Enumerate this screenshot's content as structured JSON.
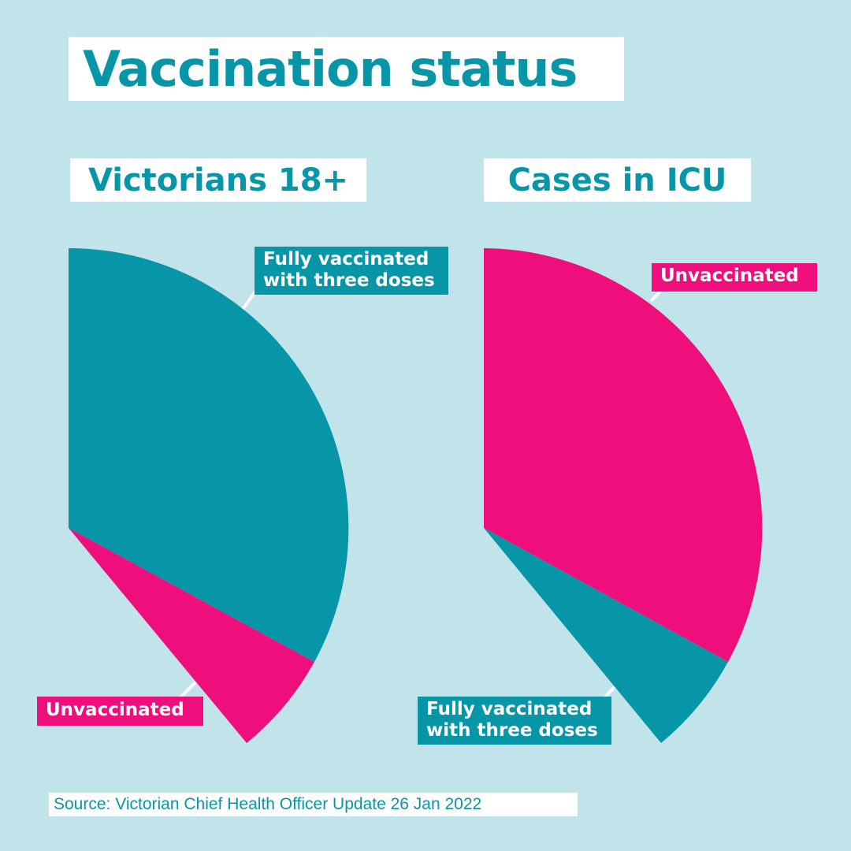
{
  "title": "Vaccination status",
  "source": "Source: Victorian Chief Health Officer Update 26 Jan 2022",
  "colors": {
    "fully_vaccinated": "#0796a8",
    "unvaccinated": "#ee0e7c",
    "background": "#c1e4ea"
  },
  "chart_data": [
    {
      "type": "pie",
      "title": "Victorians 18+",
      "slices": [
        {
          "label": "Fully vaccinated with three doses",
          "color": "#0796a8"
        },
        {
          "label": "Unvaccinated",
          "color": "#ee0e7c"
        }
      ]
    },
    {
      "type": "pie",
      "title": "Cases in ICU",
      "slices": [
        {
          "label": "Unvaccinated",
          "color": "#ee0e7c"
        },
        {
          "label": "Fully vaccinated with three doses",
          "color": "#0796a8"
        }
      ]
    }
  ],
  "labels": {
    "left_top": [
      "Fully vaccinated",
      "with three doses"
    ],
    "left_bottom": "Unvaccinated",
    "right_top": "Unvaccinated",
    "right_bottom": [
      "Fully vaccinated",
      "with three doses"
    ]
  }
}
